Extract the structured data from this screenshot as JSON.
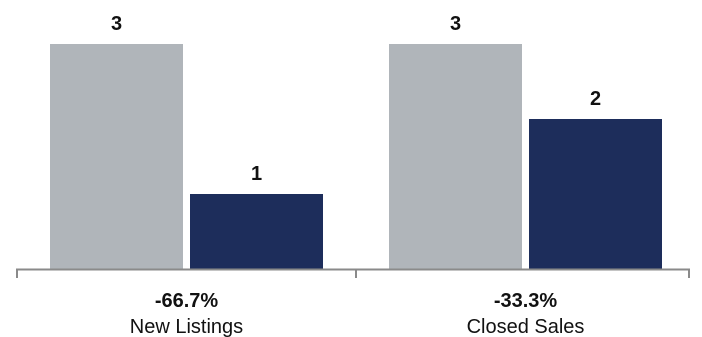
{
  "chart_data": {
    "type": "bar",
    "categories": [
      "New Listings",
      "Closed Sales"
    ],
    "series": [
      {
        "values": [
          3,
          3
        ],
        "color": "#b0b5ba"
      },
      {
        "values": [
          1,
          2
        ],
        "color": "#1d2d5b"
      }
    ],
    "value_labels": [
      [
        "3",
        "1"
      ],
      [
        "3",
        "2"
      ]
    ],
    "change_labels": [
      "-66.7%",
      "-33.3%"
    ],
    "ylim": [
      0,
      3
    ],
    "grid": false,
    "axis_color": "#8a8a8a"
  }
}
